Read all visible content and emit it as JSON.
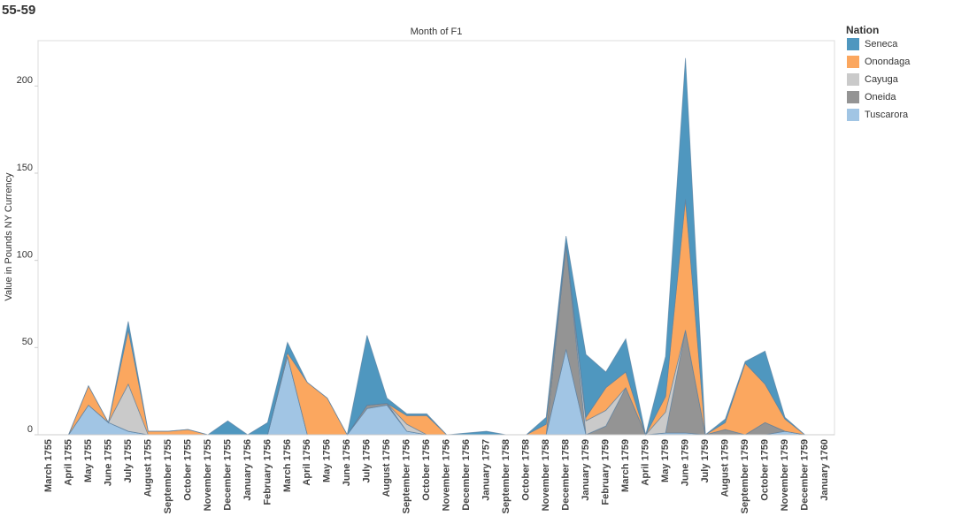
{
  "chart_data": {
    "type": "area",
    "title": "55-59",
    "header": "Month of F1",
    "y_label": "Value in Pounds NY Currency",
    "legend_title": "Nation",
    "stacked": true,
    "categories": [
      "March 1755",
      "April 1755",
      "May 1755",
      "June 1755",
      "July 1755",
      "August 1755",
      "September 1755",
      "October 1755",
      "November 1755",
      "December 1755",
      "January 1756",
      "February 1756",
      "March 1756",
      "April 1756",
      "May 1756",
      "June 1756",
      "July 1756",
      "August 1756",
      "September 1756",
      "October 1756",
      "November 1756",
      "December 1756",
      "January 1757",
      "September 1758",
      "October 1758",
      "November 1758",
      "December 1758",
      "January 1759",
      "February 1759",
      "March 1759",
      "April 1759",
      "May 1759",
      "June 1759",
      "July 1759",
      "August 1759",
      "September 1759",
      "October 1759",
      "November 1759",
      "December 1759",
      "January 1760"
    ],
    "series": [
      {
        "name": "Seneca",
        "color": "#4f97bf",
        "values": [
          0,
          0,
          0,
          0,
          5,
          0,
          0,
          0,
          0,
          8,
          0,
          7,
          6,
          0,
          0,
          0,
          40,
          3,
          1,
          1,
          0,
          1,
          2,
          0,
          0,
          4,
          4,
          36,
          9,
          19,
          0,
          23,
          81,
          0,
          2,
          1,
          19,
          1,
          0,
          0
        ]
      },
      {
        "name": "Onondaga",
        "color": "#fba75f",
        "values": [
          0,
          0,
          11,
          0,
          31,
          2,
          2,
          3,
          0,
          0,
          0,
          0,
          2,
          30,
          21,
          0,
          0,
          0,
          5,
          11,
          0,
          0,
          0,
          0,
          0,
          6,
          1,
          2,
          13,
          9,
          0,
          9,
          75,
          0,
          4,
          41,
          22,
          7,
          0,
          0
        ]
      },
      {
        "name": "Cayuga",
        "color": "#cacaca",
        "values": [
          0,
          0,
          0,
          0,
          27,
          0,
          0,
          0,
          0,
          0,
          0,
          0,
          0,
          0,
          0,
          0,
          0,
          0,
          4,
          0,
          0,
          0,
          0,
          0,
          0,
          0,
          0,
          8,
          9,
          0,
          0,
          12,
          0,
          0,
          0,
          0,
          0,
          0,
          0,
          0
        ]
      },
      {
        "name": "Oneida",
        "color": "#949494",
        "values": [
          0,
          0,
          0,
          0,
          0,
          0,
          0,
          0,
          0,
          0,
          0,
          0,
          0,
          0,
          0,
          0,
          2,
          1,
          0,
          0,
          0,
          0,
          0,
          0,
          0,
          0,
          60,
          0,
          5,
          27,
          0,
          0,
          59,
          0,
          3,
          0,
          7,
          0,
          0,
          0
        ]
      },
      {
        "name": "Tuscarora",
        "color": "#a1c5e4",
        "values": [
          0,
          0,
          17,
          7,
          2,
          0,
          0,
          0,
          0,
          0,
          0,
          0,
          45,
          0,
          0,
          0,
          15,
          17,
          2,
          0,
          0,
          0,
          0,
          0,
          0,
          0,
          49,
          0,
          0,
          0,
          0,
          1,
          1,
          0,
          0,
          0,
          0,
          2,
          0,
          0
        ]
      }
    ],
    "ylim": [
      0,
      226
    ],
    "yticks": [
      0,
      50,
      100,
      150,
      200
    ],
    "grid": false,
    "legend": "right"
  }
}
